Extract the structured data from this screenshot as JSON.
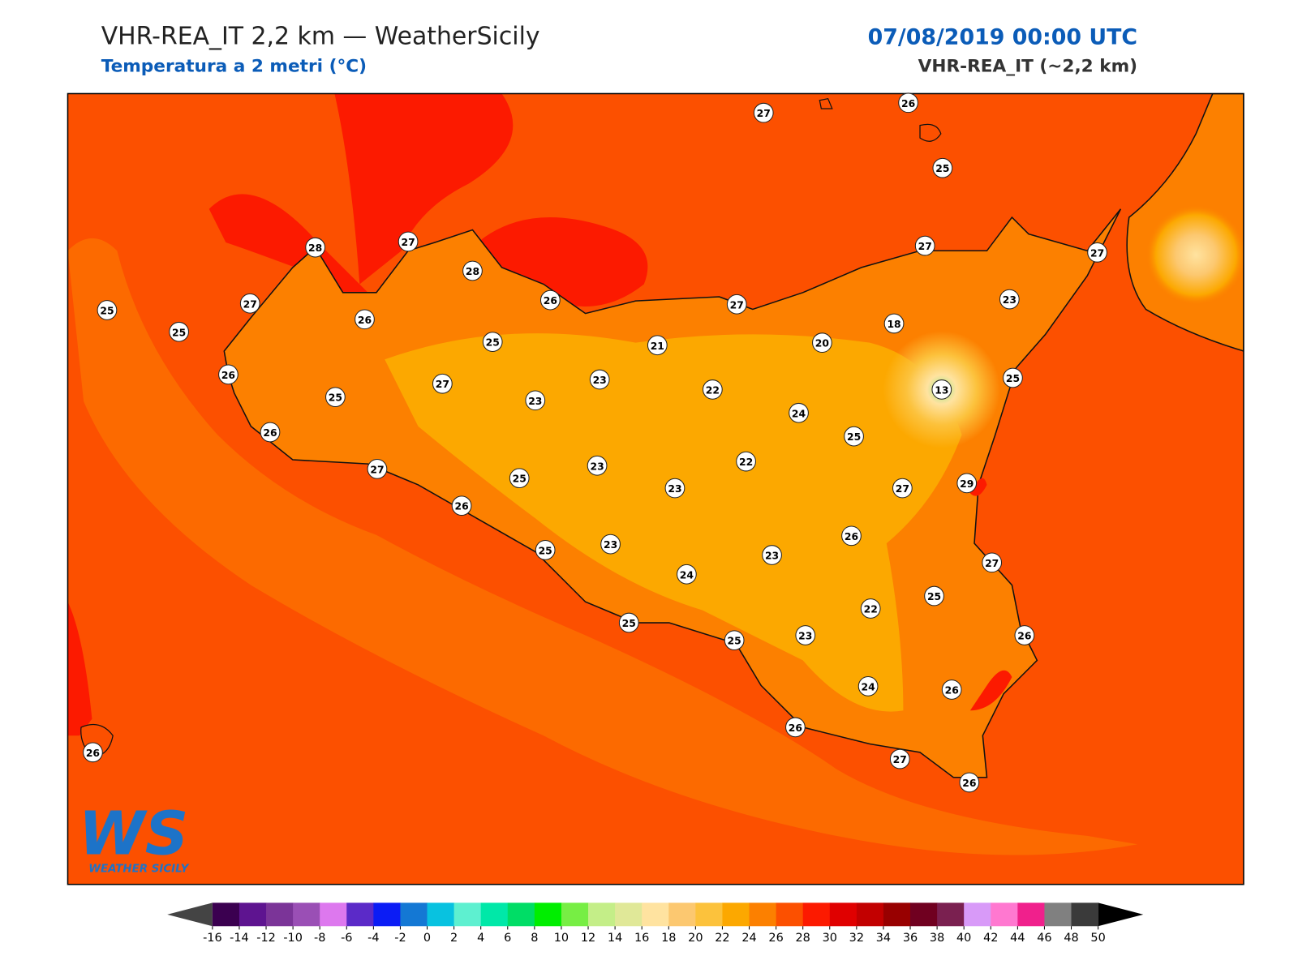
{
  "header": {
    "title": "VHR-REA_IT 2,2 km — WeatherSicily",
    "subtitle": "Temperatura a 2 metri (°C)",
    "date": "07/08/2019 00:00 UTC",
    "model": "VHR-REA_IT (~2,2 km)"
  },
  "logo": {
    "mark": "WS",
    "text": "WEATHER SICILY"
  },
  "stations": [
    27,
    26,
    25,
    28,
    27,
    28,
    27,
    27,
    25,
    27,
    25,
    26,
    26,
    27,
    23,
    25,
    21,
    20,
    18,
    26,
    25,
    27,
    23,
    23,
    22,
    13,
    25,
    24,
    25,
    26,
    23,
    22,
    27,
    25,
    23,
    27,
    29,
    26,
    26,
    25,
    23,
    23,
    24,
    27,
    25,
    22,
    25,
    25,
    23,
    26,
    24,
    26,
    26,
    26,
    27,
    26
  ],
  "colorbar": {
    "ticks": [
      -16,
      -14,
      -12,
      -10,
      -8,
      -6,
      -4,
      -2,
      0,
      2,
      4,
      6,
      8,
      10,
      12,
      14,
      16,
      18,
      20,
      22,
      24,
      26,
      28,
      30,
      32,
      34,
      36,
      38,
      40,
      42,
      44,
      46,
      48,
      50
    ],
    "colors": [
      "#3b0050",
      "#5e1490",
      "#7b3498",
      "#9a4fb5",
      "#dd78ee",
      "#5b2ac8",
      "#0b1cf5",
      "#1478d4",
      "#08c2e0",
      "#5ef0d0",
      "#00e8a8",
      "#00dd66",
      "#00ee00",
      "#77ee44",
      "#c4ee88",
      "#e0e898",
      "#ffe3a0",
      "#fcc870",
      "#fcc23c",
      "#fca800",
      "#fc8000",
      "#fc5000",
      "#fc1a00",
      "#e00000",
      "#c20000",
      "#980000",
      "#700020",
      "#7a2050",
      "#d89af8",
      "#ff78d0",
      "#f0208c",
      "#808080",
      "#3a3a3a"
    ],
    "under": "#444444",
    "over": "#000000"
  }
}
